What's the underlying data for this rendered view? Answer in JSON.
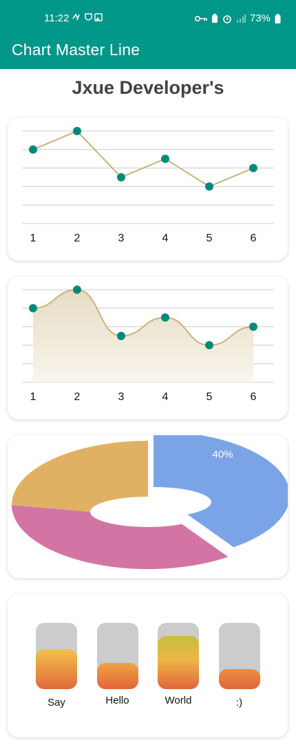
{
  "status_bar": {
    "time": "11:22",
    "battery": "73%"
  },
  "app_bar": {
    "title": "Chart Master Line"
  },
  "page": {
    "title": "Jxue Developer's"
  },
  "colors": {
    "primary": "#009688",
    "point": "#00897b",
    "line": "#c8b27c",
    "area_top": "#e6dcc3",
    "area_bottom": "#f8f5ec",
    "grid": "#cccccc",
    "slice_blue": "#7ba4e6",
    "slice_pink": "#d375a4",
    "slice_gold": "#e0b163",
    "bar_track": "#cccccc"
  },
  "chart_data": [
    {
      "type": "line",
      "x": [
        "1",
        "2",
        "3",
        "4",
        "5",
        "6"
      ],
      "values": [
        4,
        5,
        2.5,
        3.5,
        2,
        3
      ],
      "ylim": [
        0,
        5
      ],
      "grid": true,
      "smooth": false
    },
    {
      "type": "area",
      "x": [
        "1",
        "2",
        "3",
        "4",
        "5",
        "6"
      ],
      "values": [
        4,
        5,
        2.5,
        3.5,
        2,
        3
      ],
      "ylim": [
        0,
        5
      ],
      "grid": true,
      "smooth": true
    },
    {
      "type": "pie",
      "style": "3d-donut",
      "slices": [
        {
          "value": 40,
          "label": "40%",
          "color": "#7ba4e6"
        },
        {
          "value": 35,
          "label": "",
          "color": "#d375a4"
        },
        {
          "value": 25,
          "label": "",
          "color": "#e0b163"
        }
      ]
    },
    {
      "type": "bar",
      "categories": [
        "Say",
        "Hello",
        "World",
        ":)"
      ],
      "values": [
        0.6,
        0.4,
        0.8,
        0.3
      ],
      "ylim": [
        0,
        1
      ]
    }
  ]
}
